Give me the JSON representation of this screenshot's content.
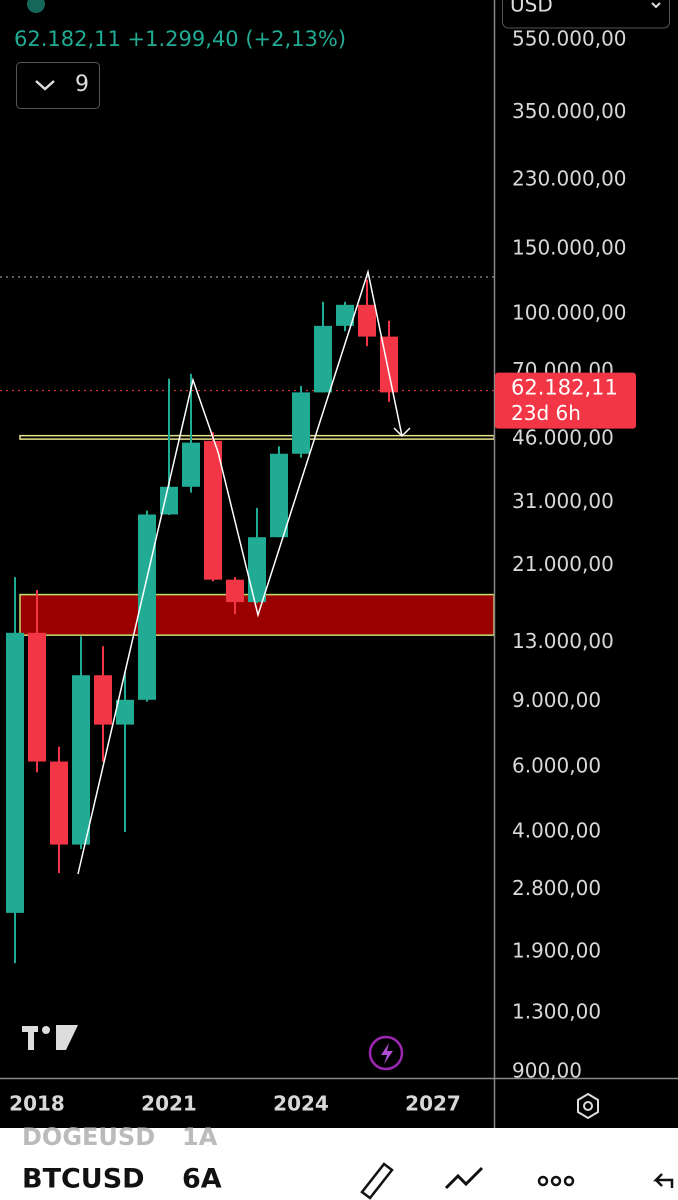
{
  "header": {
    "quote": "62.182,11  +1.299,40 (+2,13%)",
    "interval_count": "9",
    "currency": "USD"
  },
  "chart_data": {
    "type": "candlestick",
    "log_scale": true,
    "categories": [
      null,
      "2018",
      null,
      null,
      null,
      null,
      null,
      "2021",
      null,
      null,
      null,
      null,
      null,
      "2024",
      null,
      null,
      null,
      null,
      null,
      "2027"
    ],
    "series": [
      {
        "up_color": "#22ab94",
        "down_color": "#f23645",
        "open": [
          2420,
          13800,
          6200,
          3700,
          10600,
          7800,
          9100,
          28800,
          34200,
          45500,
          19200,
          16700,
          25000,
          42000,
          61500,
          93000,
          106000,
          87000,
          null,
          null
        ],
        "high": [
          19500,
          18000,
          6800,
          13500,
          12700,
          10800,
          29500,
          67000,
          69000,
          48000,
          19500,
          30000,
          44000,
          64000,
          108000,
          108000,
          124000,
          96000,
          null,
          null
        ],
        "low": [
          1770,
          5800,
          3100,
          3600,
          6200,
          4000,
          9000,
          28700,
          33000,
          19000,
          15500,
          16600,
          25000,
          41000,
          61500,
          90000,
          82000,
          58000,
          null,
          null
        ],
        "close": [
          13800,
          6200,
          3700,
          10600,
          7800,
          9100,
          28800,
          34200,
          45000,
          19200,
          16700,
          25000,
          42000,
          61500,
          93000,
          106000,
          87000,
          61500,
          null,
          null
        ]
      }
    ],
    "ylim": [
      867,
      705000
    ],
    "yticks": [
      {
        "value": 900,
        "label": "900,00"
      },
      {
        "value": 1300,
        "label": "1.300,00"
      },
      {
        "value": 1900,
        "label": "1.900,00"
      },
      {
        "value": 2800,
        "label": "2.800,00"
      },
      {
        "value": 4000,
        "label": "4.000,00"
      },
      {
        "value": 6000,
        "label": "6.000,00"
      },
      {
        "value": 9000,
        "label": "9.000,00"
      },
      {
        "value": 13000,
        "label": "13.000,00"
      },
      {
        "value": 21000,
        "label": "21.000,00"
      },
      {
        "value": 31000,
        "label": "31.000,00"
      },
      {
        "value": 46000,
        "label": "46.000,00"
      },
      {
        "value": 70000,
        "label": "70.000,00"
      },
      {
        "value": 100000,
        "label": "100.000,00"
      },
      {
        "value": 150000,
        "label": "150.000,00"
      },
      {
        "value": 230000,
        "label": "230.000,00"
      },
      {
        "value": 350000,
        "label": "350.000,00"
      },
      {
        "value": 550000,
        "label": "550.000,00"
      }
    ],
    "last_price": {
      "value": 62182.11,
      "label": "62.182,11",
      "color": "#f23645"
    },
    "countdown": "23d 6h",
    "high_line": 126000,
    "zones": [
      {
        "low": 13600,
        "high": 17500,
        "fill": "#9b0000",
        "border": "#c8e070"
      },
      {
        "low": 46000,
        "high": 47000,
        "fill": "#000000",
        "border": "#e8e08a"
      }
    ]
  },
  "footer": {
    "prev_symbol": "DOGEUSD",
    "prev_interval": "1A",
    "symbol": "BTCUSD",
    "interval": "6A"
  }
}
